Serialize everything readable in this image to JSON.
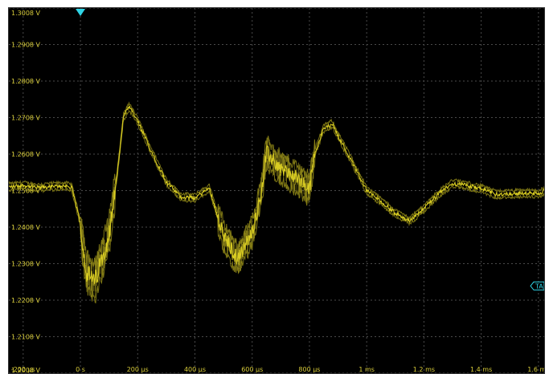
{
  "chart_data": {
    "type": "line",
    "title": "",
    "xlabel": "",
    "ylabel": "",
    "grid": true,
    "xlim": [
      -0.00025,
      0.00162
    ],
    "ylim": [
      1.2008,
      1.3008
    ],
    "yticks": [
      1.3008,
      1.2908,
      1.2808,
      1.2708,
      1.2608,
      1.2508,
      1.2408,
      1.2308,
      1.2208,
      1.2108,
      1.2008
    ],
    "ytick_labels": [
      "1.3008 V",
      "1.2908 V",
      "1.2808 V",
      "1.2708 V",
      "1.2608 V",
      "1.2508 V",
      "1.2408 V",
      "1.2308 V",
      "1.2208 V",
      "1.2108 V",
      "1.2008 V"
    ],
    "xticks": [
      -0.0002,
      0,
      0.0002,
      0.0004,
      0.0006,
      0.0008,
      0.001,
      0.0012,
      0.0014,
      0.0016
    ],
    "xtick_labels": [
      "-200 µs",
      "0 s",
      "200 µs",
      "400 µs",
      "600 µs",
      "800 µs",
      "1 ms",
      "1.2 ms",
      "1.4 ms",
      "1.6 ms"
    ],
    "series": [
      {
        "name": "",
        "color": "#d8cc22",
        "x": [
          -0.00025,
          -0.0002,
          -0.00015,
          -0.0001,
          -5e-05,
          -3e-05,
          0,
          2e-05,
          5e-05,
          0.0001,
          0.00013,
          0.00015,
          0.00017,
          0.0002,
          0.00025,
          0.0003,
          0.00035,
          0.0004,
          0.00045,
          0.0005,
          0.00055,
          0.0006,
          0.00063,
          0.00065,
          0.0007,
          0.00075,
          0.0008,
          0.00082,
          0.00085,
          0.00088,
          0.0009,
          0.00095,
          0.001,
          0.00105,
          0.0011,
          0.00115,
          0.0012,
          0.00125,
          0.0013,
          0.00135,
          0.0014,
          0.00145,
          0.0015,
          0.00155,
          0.0016,
          0.00162
        ],
        "y": [
          1.2518,
          1.2522,
          1.2516,
          1.2519,
          1.2521,
          1.2515,
          1.2419,
          1.2285,
          1.2258,
          1.2385,
          1.2563,
          1.2708,
          1.2738,
          1.2698,
          1.2612,
          1.2532,
          1.2491,
          1.2488,
          1.2515,
          1.2385,
          1.2318,
          1.2395,
          1.2495,
          1.2612,
          1.2568,
          1.2545,
          1.2512,
          1.2615,
          1.2678,
          1.2691,
          1.2658,
          1.2585,
          1.2509,
          1.2478,
          1.2446,
          1.2425,
          1.2459,
          1.2498,
          1.2528,
          1.2522,
          1.2513,
          1.2498,
          1.2499,
          1.2501,
          1.2499,
          1.2507
        ]
      }
    ],
    "markers": {
      "trigger_time": 0,
      "trigger_time_color": "#2fd4e6",
      "trigger_level_label": "TA",
      "trigger_level": 1.2247,
      "trigger_level_color": "#2fd4e6"
    },
    "colors": {
      "background": "#000000",
      "grid": "#4a4a4a",
      "label": "#d8cc3a",
      "trace": "#d8cc22"
    }
  }
}
